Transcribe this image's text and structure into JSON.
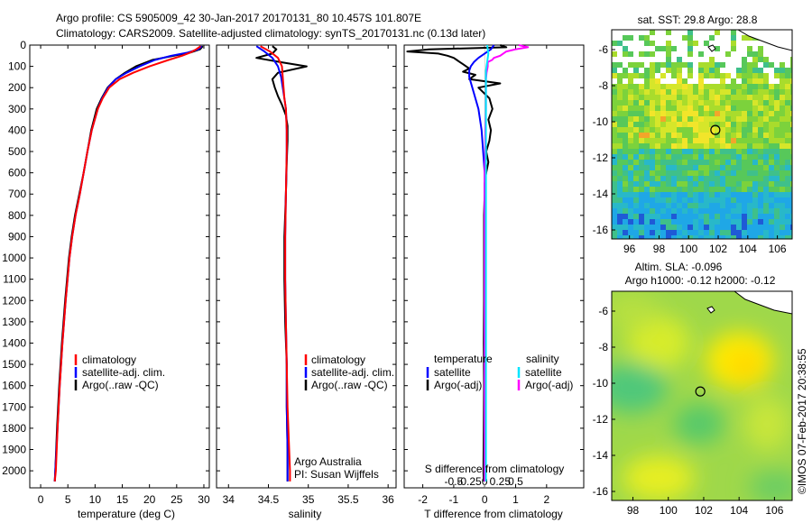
{
  "header": {
    "line1": "Argo profile: CS 5905009_42 30-Jan-2017 20170131_80 10.457S 101.807E",
    "line2": "Climatology: CARS2009. Satellite-adjusted climatology: synTS_20170131.nc (0.13d later)"
  },
  "colors": {
    "climatology": "#ff0000",
    "satellite": "#0000ff",
    "argo": "#000000",
    "satellite_salinity": "#00e5ff",
    "argo_salinity": "#ff00ff"
  },
  "depth_axis": {
    "ylim": [
      0,
      2080
    ],
    "ticks": [
      0,
      100,
      200,
      300,
      400,
      500,
      600,
      700,
      800,
      900,
      1000,
      1100,
      1200,
      1300,
      1400,
      1500,
      1600,
      1700,
      1800,
      1900,
      2000
    ]
  },
  "chart_data": [
    {
      "id": "temperature",
      "type": "line",
      "xlabel": "temperature (deg C)",
      "xlim": [
        -2,
        31
      ],
      "xticks": [
        0,
        5,
        10,
        15,
        20,
        25,
        30
      ],
      "legend": {
        "position": "lower-left",
        "entries": [
          {
            "key": "climatology",
            "label": "climatology"
          },
          {
            "key": "satellite",
            "label": "satellite-adj. clim."
          },
          {
            "key": "argo",
            "label": "Argo(..raw -QC)"
          }
        ]
      },
      "series": [
        {
          "name": "Argo(..raw -QC)",
          "color_key": "argo",
          "depth": [
            5,
            20,
            35,
            50,
            70,
            100,
            130,
            160,
            200,
            250,
            300,
            400,
            500,
            600,
            700,
            800,
            900,
            1000,
            1200,
            1400,
            1600,
            1800,
            2000,
            2050
          ],
          "values": [
            29.8,
            29.3,
            27.5,
            24.5,
            20.5,
            17.5,
            15.5,
            13.8,
            12.3,
            11.2,
            10.3,
            9.3,
            8.6,
            7.9,
            7.1,
            6.3,
            5.7,
            5.2,
            4.5,
            3.9,
            3.4,
            3.0,
            2.7,
            2.6
          ]
        },
        {
          "name": "satellite-adj. clim.",
          "color_key": "satellite",
          "depth": [
            5,
            20,
            35,
            50,
            70,
            100,
            130,
            160,
            200,
            250,
            300,
            400,
            500,
            600,
            700,
            800,
            900,
            1000,
            1200,
            1400,
            1600,
            1800,
            2000,
            2050
          ],
          "values": [
            29.6,
            29.0,
            27.0,
            24.0,
            21.0,
            18.2,
            15.8,
            13.8,
            12.4,
            11.3,
            10.5,
            9.4,
            8.6,
            7.9,
            7.2,
            6.4,
            5.8,
            5.3,
            4.6,
            4.0,
            3.5,
            3.1,
            2.7,
            2.6
          ]
        },
        {
          "name": "climatology",
          "color_key": "climatology",
          "depth": [
            5,
            20,
            35,
            50,
            70,
            100,
            130,
            160,
            200,
            250,
            300,
            400,
            500,
            600,
            700,
            800,
            900,
            1000,
            1200,
            1400,
            1600,
            1800,
            2000,
            2050
          ],
          "values": [
            29.4,
            28.6,
            27.5,
            26.0,
            23.5,
            20.0,
            17.0,
            14.5,
            12.6,
            11.4,
            10.5,
            9.4,
            8.6,
            7.9,
            7.2,
            6.4,
            5.8,
            5.3,
            4.6,
            4.0,
            3.5,
            3.1,
            2.8,
            2.6
          ]
        }
      ]
    },
    {
      "id": "salinity",
      "type": "line",
      "xlabel": "salinity",
      "xlim": [
        33.85,
        36.1
      ],
      "xticks": [
        34,
        34.5,
        35,
        35.5,
        36
      ],
      "xticklabels": [
        "34",
        "34.5",
        "35",
        "35.5",
        "36"
      ],
      "legend": {
        "position": "lower-left",
        "entries": [
          {
            "key": "climatology",
            "label": "climatology"
          },
          {
            "key": "satellite",
            "label": "satellite-adj. clim."
          },
          {
            "key": "argo",
            "label": "Argo(..raw -QC)"
          }
        ]
      },
      "series": [
        {
          "name": "Argo(..raw -QC)",
          "color_key": "argo",
          "depth": [
            5,
            20,
            40,
            60,
            80,
            100,
            130,
            160,
            200,
            240,
            280,
            330,
            380,
            450,
            550,
            700,
            900,
            1100,
            1300,
            1500,
            1700,
            1900,
            2050
          ],
          "values": [
            34.55,
            34.6,
            34.55,
            34.35,
            34.65,
            34.98,
            34.62,
            34.55,
            34.58,
            34.62,
            34.67,
            34.72,
            34.74,
            34.74,
            34.73,
            34.72,
            34.7,
            34.7,
            34.71,
            34.73,
            34.73,
            34.74,
            34.74
          ]
        },
        {
          "name": "satellite-adj. clim.",
          "color_key": "satellite",
          "depth": [
            5,
            30,
            60,
            100,
            150,
            200,
            250,
            300,
            400,
            500,
            700,
            900,
            1100,
            1300,
            1500,
            1700,
            1900,
            2050
          ],
          "values": [
            34.35,
            34.45,
            34.55,
            34.62,
            34.66,
            34.68,
            34.7,
            34.72,
            34.73,
            34.73,
            34.72,
            34.71,
            34.71,
            34.72,
            34.73,
            34.73,
            34.74,
            34.74
          ]
        },
        {
          "name": "climatology",
          "color_key": "climatology",
          "depth": [
            5,
            30,
            60,
            100,
            150,
            200,
            250,
            300,
            400,
            500,
            700,
            900,
            1100,
            1300,
            1500,
            1700,
            1900,
            2000,
            2050
          ],
          "values": [
            34.4,
            34.52,
            34.62,
            34.67,
            34.68,
            34.69,
            34.7,
            34.72,
            34.73,
            34.73,
            34.72,
            34.71,
            34.71,
            34.72,
            34.73,
            34.74,
            34.76,
            34.77,
            34.77
          ]
        }
      ]
    },
    {
      "id": "differences",
      "type": "line",
      "xlabel": "T difference from climatology",
      "xlabel_top": "S difference from climatology",
      "xlim": [
        -2.6,
        3.2
      ],
      "xticks": [
        -2,
        -1,
        0,
        1,
        2
      ],
      "s_ticks": [
        -0.5,
        -0.25,
        0,
        0.25,
        0.5
      ],
      "s_ticklabels": [
        "-0.5",
        "-0.25",
        "0",
        "0.25",
        "0.5"
      ],
      "legend": {
        "position": "lower",
        "columns": [
          {
            "title": "temperature",
            "entries": [
              {
                "key": "satellite",
                "label": "satellite"
              },
              {
                "key": "argo",
                "label": "Argo(-adj)"
              }
            ]
          },
          {
            "title": "salinity",
            "entries": [
              {
                "key": "satellite_salinity",
                "label": "satellite"
              },
              {
                "key": "argo_salinity",
                "label": "Argo(-adj)"
              }
            ]
          }
        ]
      },
      "series": [
        {
          "name": "temperature Argo(-adj)",
          "color_key": "argo",
          "depth": [
            0,
            10,
            20,
            30,
            40,
            50,
            60,
            70,
            80,
            90,
            100,
            110,
            125,
            140,
            160,
            180,
            200,
            250,
            300,
            350,
            400,
            450,
            500,
            550,
            600,
            650,
            700,
            800,
            900,
            1000,
            1200,
            1400,
            1600,
            1800,
            2000,
            2050
          ],
          "values": [
            0.5,
            0.7,
            -1.8,
            -2.5,
            -1.5,
            -1.2,
            -1.0,
            -0.9,
            -0.8,
            -0.7,
            -0.6,
            -0.5,
            -0.7,
            -0.3,
            -0.5,
            0.5,
            -0.2,
            0.15,
            0.25,
            0.12,
            0.2,
            0.15,
            0.05,
            0.12,
            0.05,
            0.0,
            0.0,
            -0.02,
            -0.02,
            -0.02,
            -0.02,
            -0.03,
            -0.02,
            -0.03,
            -0.04,
            -0.03
          ]
        },
        {
          "name": "temperature satellite",
          "color_key": "satellite",
          "depth": [
            0,
            20,
            40,
            60,
            80,
            100,
            120,
            150,
            200,
            250,
            300,
            400,
            500,
            600,
            700,
            800,
            1000,
            1200,
            1400,
            1600,
            1800,
            2000,
            2050
          ],
          "values": [
            0.3,
            0.2,
            0.0,
            -0.2,
            -0.35,
            -0.45,
            -0.5,
            -0.5,
            -0.4,
            -0.3,
            -0.2,
            -0.1,
            -0.05,
            0.0,
            0.0,
            0.0,
            0.0,
            0.0,
            0.0,
            0.0,
            0.0,
            0.0,
            0.0
          ]
        },
        {
          "name": "salinity Argo(-adj)",
          "color_key": "argo_salinity",
          "depth": [
            0,
            10,
            20,
            30,
            40,
            50,
            60,
            70,
            80,
            100,
            130,
            160,
            200,
            250,
            300,
            400,
            500,
            600,
            700,
            800,
            900,
            1000,
            1200,
            1400,
            1600,
            1800,
            2000,
            2050
          ],
          "values": [
            0.55,
            0.7,
            0.5,
            0.35,
            0.3,
            0.25,
            0.15,
            0.12,
            0.05,
            0.05,
            0.03,
            0.02,
            0.02,
            0.02,
            0.02,
            0.01,
            0.01,
            0.0,
            0.0,
            0.0,
            0.0,
            0.0,
            0.0,
            0.0,
            0.0,
            0.0,
            0.0,
            0.0
          ]
        },
        {
          "name": "salinity satellite",
          "color_key": "satellite_salinity",
          "depth": [
            0,
            20,
            40,
            60,
            80,
            100,
            120,
            150,
            200,
            300,
            400,
            500,
            600,
            700,
            800,
            1000,
            1200,
            1400,
            1600,
            1800,
            2000,
            2050
          ],
          "values": [
            0.04,
            0.05,
            0.06,
            0.05,
            0.04,
            0.03,
            0.02,
            0.02,
            0.02,
            0.02,
            0.02,
            0.02,
            0.02,
            0.02,
            0.02,
            0.02,
            0.02,
            0.02,
            0.02,
            0.02,
            0.02,
            0.02
          ]
        }
      ]
    },
    {
      "id": "sst-map",
      "type": "heatmap",
      "title": "sat. SST: 29.8 Argo: 28.8",
      "xlim": [
        94.8,
        107.0
      ],
      "ylim": [
        -16.5,
        -4.9
      ],
      "xticks": [
        96,
        98,
        100,
        102,
        104,
        106
      ],
      "yticks": [
        -16,
        -14,
        -12,
        -10,
        -8,
        -6
      ],
      "marker": {
        "lon": 101.807,
        "lat": -10.457
      }
    },
    {
      "id": "sla-map",
      "type": "heatmap",
      "title": "Altim. SLA: -0.096",
      "subtitle": "Argo h1000: -0.12 h2000: -0.12",
      "xlim": [
        96.8,
        107.0
      ],
      "ylim": [
        -16.5,
        -4.9
      ],
      "xticks": [
        98,
        100,
        102,
        104,
        106
      ],
      "yticks": [
        -16,
        -14,
        -12,
        -10,
        -8,
        -6
      ],
      "marker": {
        "lon": 101.807,
        "lat": -10.457
      }
    }
  ],
  "footer": {
    "credit": "Argo Australia",
    "pi": "PI: Susan Wijffels",
    "stamp": "©IMOS 07-Feb-2017 20:38:55"
  }
}
